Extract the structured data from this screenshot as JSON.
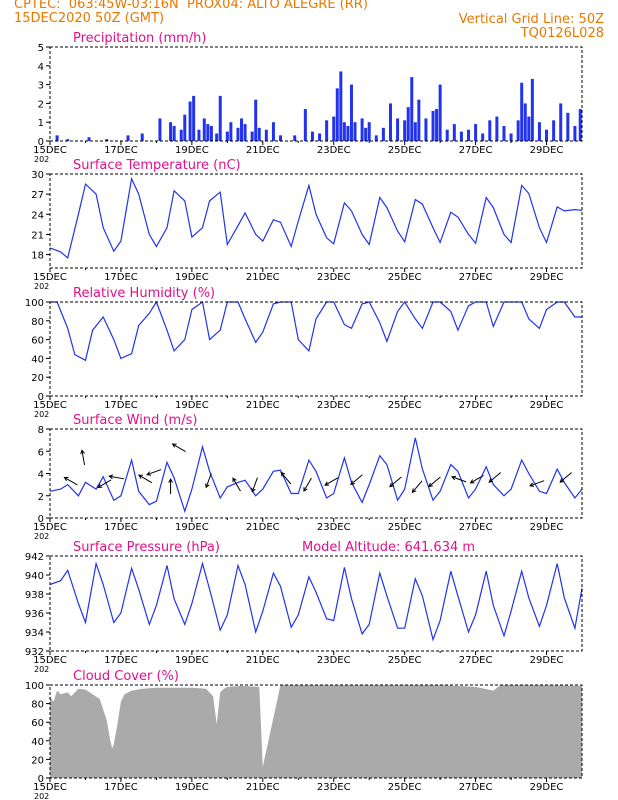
{
  "header": {
    "line1": "CPTEC:  063:45W-03:16N  PROX04: ALTO ALEGRE (RR)",
    "line2": "15DEC2020 50Z (GMT)",
    "right1": "Vertical Grid Line: 50Z",
    "right2": "TQ0126L028"
  },
  "colors": {
    "header": "#e87800",
    "title": "#e0108c",
    "line": "#2233ee",
    "bar": "#2233ee",
    "cloud": "#aaaaaa",
    "arrow": "#000000"
  },
  "x_axis": {
    "tick_labels": [
      "15DEC",
      "17DEC",
      "19DEC",
      "21DEC",
      "23DEC",
      "25DEC",
      "27DEC",
      "29DEC"
    ],
    "tick_days": [
      0,
      2,
      4,
      6,
      8,
      10,
      12,
      14
    ],
    "sub_label": "202",
    "range_days": [
      0,
      15
    ]
  },
  "chart_data": [
    {
      "type": "bar",
      "title": "Precipitation (mm/h)",
      "ylim": [
        0,
        5
      ],
      "yticks": [
        0,
        1,
        2,
        3,
        4,
        5
      ],
      "x_days": [
        0.2,
        0.5,
        1.1,
        1.6,
        2.2,
        2.6,
        3.1,
        3.4,
        3.5,
        3.7,
        3.8,
        3.95,
        4.05,
        4.2,
        4.35,
        4.45,
        4.55,
        4.7,
        4.8,
        5.0,
        5.1,
        5.3,
        5.4,
        5.5,
        5.7,
        5.8,
        5.9,
        6.1,
        6.3,
        6.5,
        6.9,
        7.2,
        7.4,
        7.6,
        7.8,
        8.0,
        8.1,
        8.2,
        8.3,
        8.4,
        8.5,
        8.6,
        8.8,
        8.9,
        9.0,
        9.2,
        9.4,
        9.6,
        9.8,
        10.0,
        10.1,
        10.2,
        10.3,
        10.4,
        10.6,
        10.8,
        10.9,
        11.0,
        11.2,
        11.4,
        11.6,
        11.8,
        12.0,
        12.2,
        12.4,
        12.6,
        12.8,
        13.0,
        13.2,
        13.3,
        13.4,
        13.5,
        13.6,
        13.8,
        14.0,
        14.2,
        14.4,
        14.6,
        14.8,
        14.95
      ],
      "values": [
        0.3,
        0.1,
        0.2,
        0.1,
        0.3,
        0.4,
        1.2,
        1.0,
        0.8,
        0.6,
        1.4,
        2.1,
        2.4,
        0.6,
        1.2,
        0.9,
        0.8,
        0.4,
        2.4,
        0.5,
        1.0,
        0.7,
        1.2,
        0.9,
        0.5,
        2.2,
        0.7,
        0.6,
        1.0,
        0.3,
        0.3,
        1.7,
        0.5,
        0.4,
        1.1,
        1.3,
        2.8,
        3.7,
        1.0,
        0.8,
        3.0,
        1.0,
        1.2,
        0.7,
        1.0,
        0.3,
        0.7,
        2.0,
        1.2,
        1.1,
        1.8,
        3.4,
        1.0,
        2.2,
        1.2,
        1.6,
        1.7,
        3.0,
        0.6,
        0.9,
        0.5,
        0.6,
        0.9,
        0.4,
        1.1,
        1.3,
        0.8,
        0.4,
        1.1,
        3.1,
        2.0,
        1.3,
        3.3,
        1.0,
        0.6,
        1.1,
        2.0,
        1.5,
        0.8,
        1.7
      ]
    },
    {
      "type": "line",
      "title": "Surface Temperature (nC)",
      "ylim": [
        16,
        30
      ],
      "yticks": [
        18,
        21,
        24,
        27,
        30
      ],
      "x": [
        0,
        0.3,
        0.5,
        0.8,
        1.0,
        1.3,
        1.5,
        1.8,
        2.0,
        2.3,
        2.5,
        2.8,
        3.0,
        3.3,
        3.5,
        3.8,
        4.0,
        4.3,
        4.5,
        4.8,
        5.0,
        5.3,
        5.5,
        5.8,
        6.0,
        6.3,
        6.5,
        6.8,
        7.0,
        7.3,
        7.5,
        7.8,
        8.0,
        8.3,
        8.5,
        8.8,
        9.0,
        9.3,
        9.5,
        9.8,
        10.0,
        10.3,
        10.5,
        10.8,
        11.0,
        11.3,
        11.5,
        11.8,
        12.0,
        12.3,
        12.5,
        12.8,
        13.0,
        13.3,
        13.5,
        13.8,
        14.0,
        14.3,
        14.5,
        14.8,
        15.0
      ],
      "y": [
        19,
        18.4,
        17.5,
        24,
        28.5,
        27,
        22,
        18.5,
        20,
        29.3,
        27,
        21,
        19.2,
        22,
        27.5,
        26,
        20.6,
        22,
        26,
        27.3,
        19.5,
        22.3,
        24.2,
        21,
        20,
        23.2,
        22.8,
        19.2,
        23,
        28.3,
        24,
        20.5,
        19.6,
        25.7,
        24.5,
        21,
        19.5,
        26.5,
        25,
        21.5,
        19.9,
        26.2,
        25.5,
        22,
        19.8,
        24.3,
        23.6,
        21,
        19.7,
        26.5,
        25,
        21,
        19.8,
        28.3,
        27.1,
        22,
        19.8,
        25.1,
        24.5,
        24.7,
        24.6
      ]
    },
    {
      "type": "line",
      "title": "Relative Humidity (%)",
      "ylim": [
        0,
        100
      ],
      "yticks": [
        0,
        20,
        40,
        60,
        80,
        100
      ],
      "x": [
        0,
        0.2,
        0.5,
        0.7,
        1.0,
        1.2,
        1.5,
        1.8,
        2.0,
        2.3,
        2.5,
        2.8,
        3.0,
        3.3,
        3.5,
        3.8,
        4.0,
        4.3,
        4.5,
        4.8,
        5.0,
        5.3,
        5.5,
        5.8,
        6.0,
        6.3,
        6.5,
        6.8,
        7.0,
        7.3,
        7.5,
        7.8,
        8.0,
        8.3,
        8.5,
        8.8,
        9.0,
        9.3,
        9.5,
        9.8,
        10.0,
        10.3,
        10.5,
        10.8,
        11.0,
        11.3,
        11.5,
        11.8,
        12.0,
        12.3,
        12.5,
        12.8,
        13.0,
        13.3,
        13.5,
        13.8,
        14.0,
        14.3,
        14.5,
        14.8,
        15.0
      ],
      "y": [
        100,
        100,
        72,
        44,
        38,
        70,
        84,
        60,
        40,
        45,
        75,
        88,
        100,
        70,
        48,
        60,
        92,
        100,
        60,
        70,
        100,
        100,
        82,
        57,
        68,
        98,
        100,
        100,
        60,
        48,
        82,
        100,
        100,
        76,
        72,
        98,
        100,
        78,
        58,
        90,
        100,
        82,
        72,
        100,
        100,
        90,
        70,
        96,
        100,
        100,
        74,
        100,
        100,
        100,
        82,
        72,
        92,
        100,
        100,
        84,
        84
      ]
    },
    {
      "type": "line",
      "title": "Surface Wind (m/s)",
      "ylim": [
        0,
        8
      ],
      "yticks": [
        0,
        2,
        4,
        6,
        8
      ],
      "x": [
        0,
        0.3,
        0.5,
        0.8,
        1.0,
        1.3,
        1.5,
        1.8,
        2.0,
        2.3,
        2.5,
        2.8,
        3.0,
        3.3,
        3.5,
        3.8,
        4.0,
        4.3,
        4.5,
        4.8,
        5.0,
        5.3,
        5.5,
        5.8,
        6.0,
        6.3,
        6.5,
        6.8,
        7.0,
        7.3,
        7.5,
        7.8,
        8.0,
        8.3,
        8.5,
        8.8,
        9.0,
        9.3,
        9.5,
        9.8,
        10.0,
        10.3,
        10.5,
        10.8,
        11.0,
        11.3,
        11.5,
        11.8,
        12.0,
        12.3,
        12.5,
        12.8,
        13.0,
        13.3,
        13.5,
        13.8,
        14.0,
        14.3,
        14.5,
        14.8,
        15.0
      ],
      "y": [
        2.4,
        2.6,
        3.0,
        2.0,
        3.2,
        2.6,
        3.7,
        1.6,
        2.0,
        5.2,
        2.4,
        1.2,
        1.5,
        5.0,
        3.6,
        0.6,
        2.6,
        6.4,
        4.2,
        1.8,
        2.8,
        3.2,
        3.4,
        2.0,
        2.6,
        4.2,
        4.3,
        2.2,
        2.2,
        5.2,
        4.2,
        1.8,
        2.2,
        5.4,
        3.2,
        1.4,
        3.0,
        5.6,
        4.8,
        1.6,
        2.6,
        7.2,
        4.4,
        1.6,
        2.4,
        4.8,
        4.2,
        1.8,
        2.6,
        4.6,
        3.0,
        2.0,
        2.6,
        5.2,
        4.0,
        2.4,
        2.2,
        4.4,
        3.2,
        1.8,
        2.6
      ]
    },
    {
      "type": "line",
      "title": "Surface Pressure (hPa)",
      "annotation": "Model Altitude: 641.634 m",
      "ylim": [
        932,
        942
      ],
      "yticks": [
        932,
        934,
        936,
        938,
        940,
        942
      ],
      "x": [
        0,
        0.3,
        0.5,
        0.8,
        1.0,
        1.3,
        1.5,
        1.8,
        2.0,
        2.3,
        2.5,
        2.8,
        3.0,
        3.3,
        3.5,
        3.8,
        4.0,
        4.3,
        4.5,
        4.8,
        5.0,
        5.3,
        5.5,
        5.8,
        6.0,
        6.3,
        6.5,
        6.8,
        7.0,
        7.3,
        7.5,
        7.8,
        8.0,
        8.3,
        8.5,
        8.8,
        9.0,
        9.3,
        9.5,
        9.8,
        10.0,
        10.3,
        10.5,
        10.8,
        11.0,
        11.3,
        11.5,
        11.8,
        12.0,
        12.3,
        12.5,
        12.8,
        13.0,
        13.3,
        13.5,
        13.8,
        14.0,
        14.3,
        14.5,
        14.8,
        15.0
      ],
      "y": [
        939,
        939.4,
        940.5,
        937,
        935,
        941.2,
        939,
        935,
        936,
        940.7,
        938.5,
        934.8,
        936.8,
        941,
        937.5,
        934.8,
        937,
        941.2,
        938.5,
        934.2,
        935.8,
        941,
        939,
        934,
        936.2,
        940.2,
        938.8,
        934.5,
        935.8,
        939.8,
        938.2,
        935.4,
        935.2,
        940.8,
        937.5,
        933.8,
        934.8,
        940.2,
        937.8,
        934.4,
        934.4,
        939.6,
        937.8,
        933.2,
        935.2,
        940.4,
        937.8,
        934,
        935.8,
        940.4,
        936.8,
        933.6,
        936.2,
        940.4,
        937.6,
        934.6,
        936.8,
        941.2,
        937.6,
        934.4,
        938.6
      ]
    },
    {
      "type": "area",
      "title": "Cloud Cover (%)",
      "ylim": [
        0,
        100
      ],
      "yticks": [
        0,
        20,
        40,
        60,
        80,
        100
      ],
      "x": [
        0,
        0.1,
        0.2,
        0.3,
        0.5,
        0.6,
        0.8,
        1.0,
        1.2,
        1.4,
        1.6,
        1.7,
        1.75,
        1.8,
        1.9,
        2.0,
        2.1,
        2.3,
        2.6,
        3.0,
        3.5,
        4.0,
        4.4,
        4.6,
        4.7,
        4.8,
        4.9,
        5.0,
        5.4,
        5.9,
        6.0,
        6.5,
        7.0,
        8.0,
        9.0,
        10.0,
        11.0,
        12.0,
        12.5,
        12.6,
        12.7,
        13.0,
        14.0,
        15.0
      ],
      "y": [
        88,
        82,
        94,
        90,
        92,
        88,
        96,
        95,
        90,
        85,
        62,
        40,
        32,
        36,
        58,
        82,
        90,
        94,
        96,
        97,
        97,
        97,
        96,
        88,
        58,
        92,
        96,
        98,
        99,
        98,
        12,
        100,
        100,
        100,
        100,
        100,
        100,
        98,
        94,
        97,
        100,
        100,
        100,
        99
      ]
    }
  ],
  "wind_arrows": [
    {
      "day": 0.65,
      "speed": 3.2,
      "dir_deg": 300
    },
    {
      "day": 0.95,
      "speed": 5.2,
      "dir_deg": 350
    },
    {
      "day": 1.6,
      "speed": 3.2,
      "dir_deg": 240
    },
    {
      "day": 1.95,
      "speed": 3.6,
      "dir_deg": 280
    },
    {
      "day": 2.75,
      "speed": 3.4,
      "dir_deg": 300
    },
    {
      "day": 3.0,
      "speed": 4.2,
      "dir_deg": 250
    },
    {
      "day": 3.4,
      "speed": 2.6,
      "dir_deg": 0
    },
    {
      "day": 3.7,
      "speed": 6.2,
      "dir_deg": 300
    },
    {
      "day": 4.5,
      "speed": 3.6,
      "dir_deg": 200
    },
    {
      "day": 5.3,
      "speed": 2.8,
      "dir_deg": 330
    },
    {
      "day": 5.8,
      "speed": 3.2,
      "dir_deg": 200
    },
    {
      "day": 6.7,
      "speed": 3.4,
      "dir_deg": 320
    },
    {
      "day": 7.3,
      "speed": 3.2,
      "dir_deg": 210
    },
    {
      "day": 8.0,
      "speed": 3.4,
      "dir_deg": 240
    },
    {
      "day": 8.7,
      "speed": 3.6,
      "dir_deg": 230
    },
    {
      "day": 9.8,
      "speed": 3.4,
      "dir_deg": 230
    },
    {
      "day": 10.4,
      "speed": 3.0,
      "dir_deg": 220
    },
    {
      "day": 10.9,
      "speed": 3.4,
      "dir_deg": 230
    },
    {
      "day": 11.6,
      "speed": 3.4,
      "dir_deg": 290
    },
    {
      "day": 12.1,
      "speed": 3.6,
      "dir_deg": 240
    },
    {
      "day": 12.6,
      "speed": 3.8,
      "dir_deg": 230
    },
    {
      "day": 13.8,
      "speed": 3.2,
      "dir_deg": 250
    },
    {
      "day": 14.6,
      "speed": 3.8,
      "dir_deg": 230
    }
  ]
}
